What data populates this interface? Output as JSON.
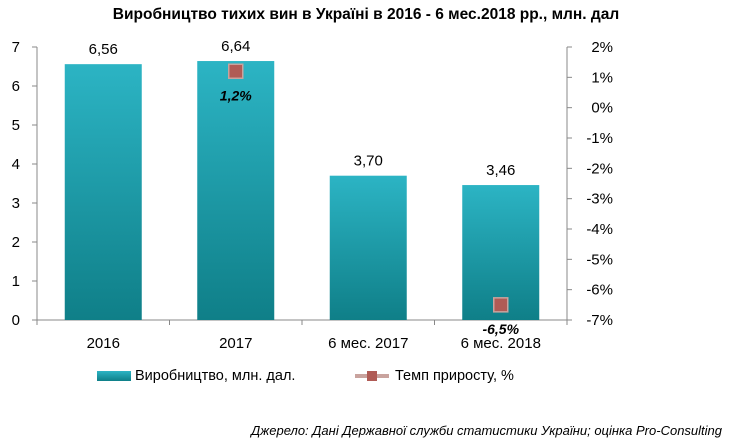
{
  "chart_title": "Виробництво тихих вин в Україні в 2016 - 6 мес.2018 рр., млн. дал",
  "source_note": "Джерело: Дані Державної служби статистики України; оцінка Pro-Consulting",
  "legend": {
    "bar_label": "Виробництво, млн. дал.",
    "line_label": "Темп приросту, %"
  },
  "colors": {
    "bar_top": "#2cb4c4",
    "bar_bottom": "#0f7f88",
    "marker": "#b05b55",
    "marker_line": "#c9a39e"
  },
  "chart_data": {
    "type": "bar",
    "categories": [
      "2016",
      "2017",
      "6 мес. 2017",
      "6 мес. 2018"
    ],
    "series": [
      {
        "name": "Виробництво, млн. дал.",
        "type": "bar",
        "axis": "left",
        "values": [
          6.56,
          6.64,
          3.7,
          3.46
        ],
        "data_labels": [
          "6,56",
          "6,64",
          "3,70",
          "3,46"
        ]
      },
      {
        "name": "Темп приросту, %",
        "type": "scatter",
        "axis": "right",
        "values": [
          null,
          1.2,
          null,
          -6.5
        ],
        "data_labels": [
          "",
          "1,2%",
          "",
          "-6,5%"
        ]
      }
    ],
    "y_left": {
      "min": 0,
      "max": 7,
      "step": 1,
      "tick_labels": [
        "0",
        "1",
        "2",
        "3",
        "4",
        "5",
        "6",
        "7"
      ]
    },
    "y_right": {
      "min": -7,
      "max": 2,
      "step": 1,
      "tick_labels": [
        "-7%",
        "-6%",
        "-5%",
        "-4%",
        "-3%",
        "-2%",
        "-1%",
        "0%",
        "1%",
        "2%"
      ]
    },
    "grid": false,
    "legend_position": "bottom"
  }
}
